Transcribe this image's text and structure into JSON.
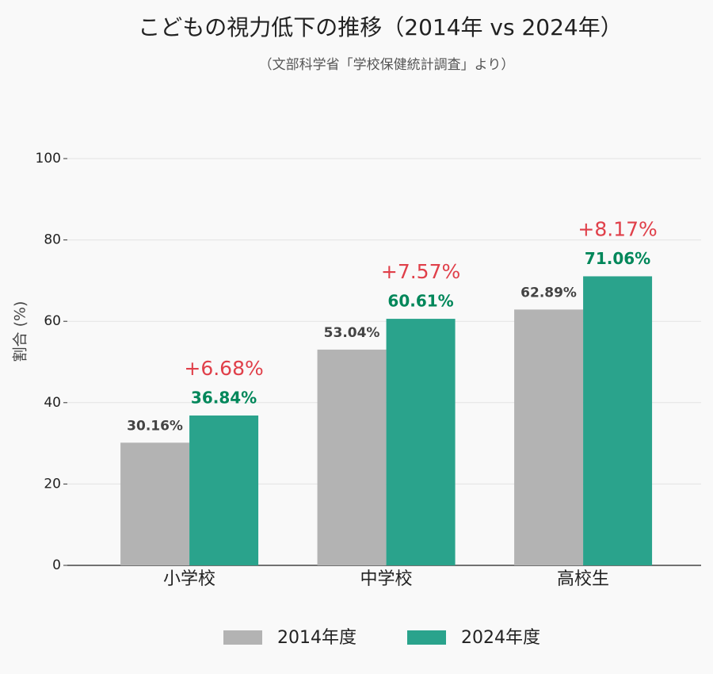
{
  "chart_data": {
    "type": "bar",
    "title": "こどもの視力低下の推移（2014年 vs 2024年）",
    "subtitle": "（文部科学省「学校保健統計調査」より）",
    "ylabel": "割合 (%)",
    "categories": [
      "小学校",
      "中学校",
      "高校生"
    ],
    "series": [
      {
        "name": "2014年度",
        "color": "#b3b3b3",
        "values": [
          30.16,
          53.04,
          62.89
        ],
        "value_labels": [
          "30.16%",
          "53.04%",
          "62.89%"
        ]
      },
      {
        "name": "2024年度",
        "color": "#2aa38c",
        "values": [
          36.84,
          60.61,
          71.06
        ],
        "value_labels": [
          "36.84%",
          "60.61%",
          "71.06%"
        ]
      }
    ],
    "annotations": [
      "+6.68%",
      "+7.57%",
      "+8.17%"
    ],
    "ylim": [
      0,
      100
    ],
    "yticks": [
      0,
      20,
      40,
      60,
      80,
      100
    ],
    "grid": true,
    "legend": "bottom"
  }
}
